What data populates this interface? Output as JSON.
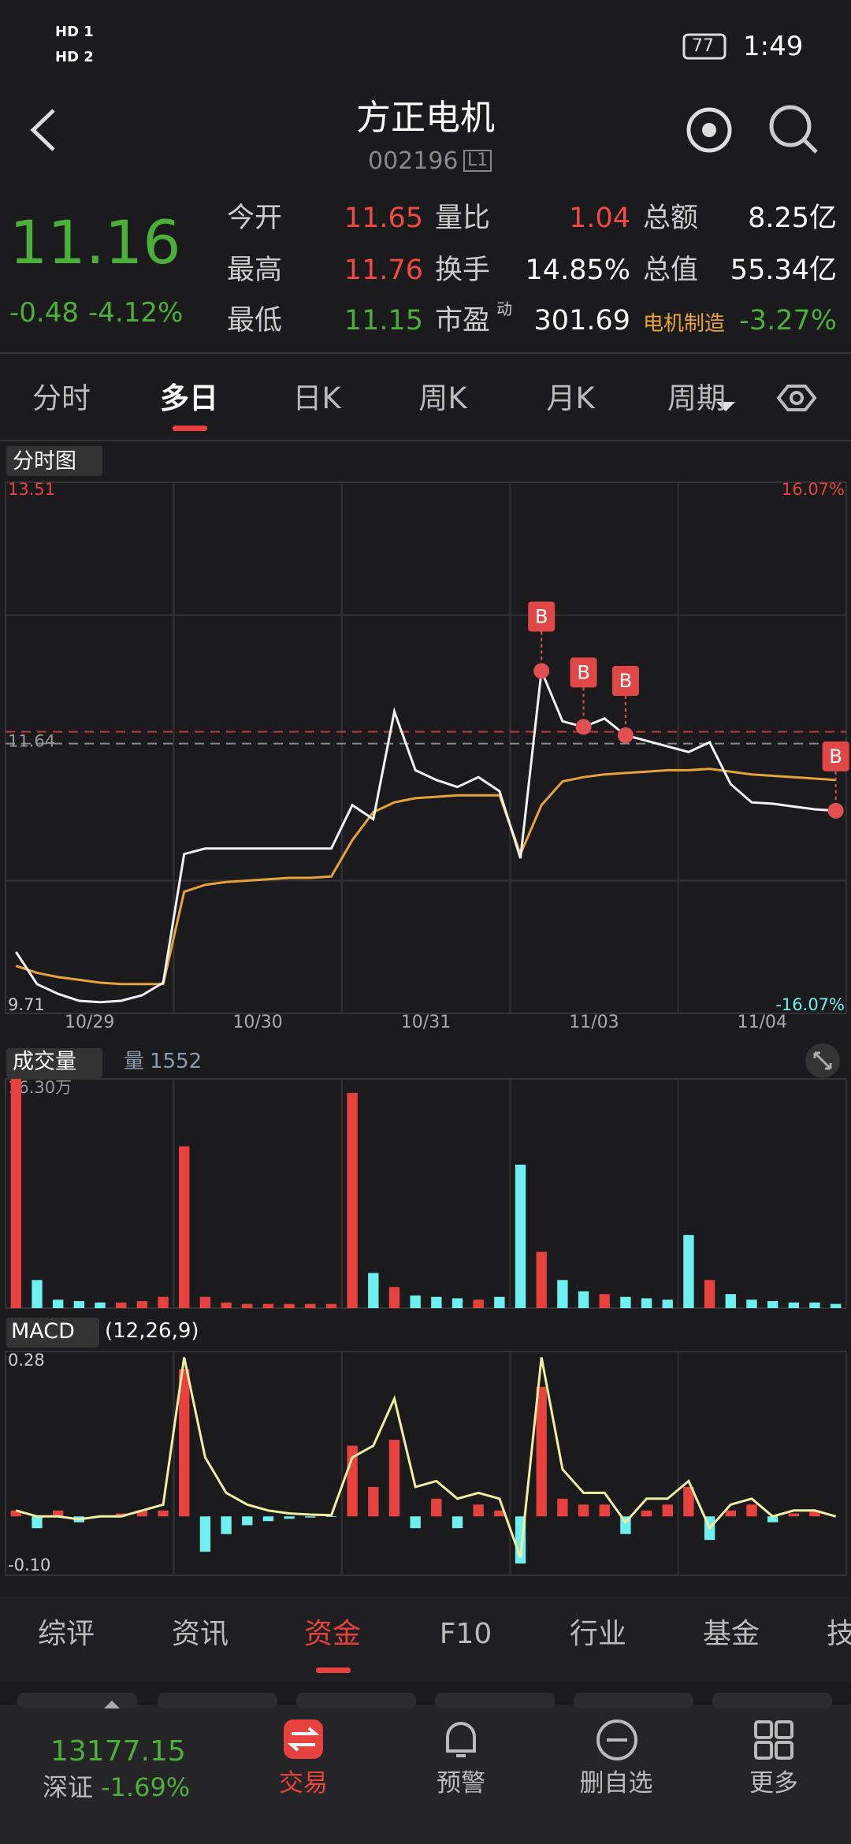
{
  "status_bar": {
    "time": "1:49",
    "battery": "77",
    "sim1": "HD 1",
    "sim2": "HD 2"
  },
  "header": {
    "title": "方正电机",
    "code": "002196",
    "badge": "L1"
  },
  "quote": {
    "price": "11.16",
    "change": "-0.48",
    "change_pct": "-4.12%",
    "stats": [
      [
        {
          "label": "今开",
          "value": "11.65",
          "color": "#f04a44"
        },
        {
          "label": "量比",
          "value": "1.04",
          "color": "#f04a44"
        },
        {
          "label": "总额",
          "value": "8.25亿",
          "color": "#ffffff"
        }
      ],
      [
        {
          "label": "最高",
          "value": "11.76",
          "color": "#f04a44"
        },
        {
          "label": "换手",
          "value": "14.85%",
          "color": "#ffffff"
        },
        {
          "label": "总值",
          "value": "55.34亿",
          "color": "#ffffff"
        }
      ],
      [
        {
          "label": "最低",
          "value": "11.15",
          "color": "#4caf3a"
        },
        {
          "label": "市盈",
          "sup": "动",
          "value": "301.69",
          "color": "#ffffff"
        },
        {
          "label": "电机制造",
          "value": "-3.27%",
          "color": "#4caf3a"
        }
      ]
    ]
  },
  "tabs": [
    "分时",
    "多日",
    "日K",
    "周K",
    "月K",
    "周期"
  ],
  "price_chart": {
    "selector": "分时图",
    "ylim": [
      9.71,
      13.51
    ],
    "yticks": [
      13.51,
      9.71
    ],
    "ref_line": 11.64,
    "pct_top": "16.07%",
    "pct_bottom": "-16.07%",
    "dates": [
      "10/29",
      "10/30",
      "10/31",
      "11/03",
      "11/04"
    ],
    "price": [
      10.15,
      9.92,
      9.85,
      9.8,
      9.79,
      9.8,
      9.84,
      9.93,
      10.85,
      10.89,
      10.89,
      10.89,
      10.89,
      10.89,
      10.89,
      10.89,
      11.2,
      11.1,
      11.87,
      11.45,
      11.38,
      11.33,
      11.4,
      11.3,
      10.82,
      12.16,
      11.8,
      11.76,
      11.82,
      11.7,
      11.66,
      11.62,
      11.58,
      11.65,
      11.35,
      11.22,
      11.21,
      11.19,
      11.17,
      11.16
    ],
    "avg": [
      10.05,
      10,
      9.97,
      9.95,
      9.93,
      9.92,
      9.92,
      9.92,
      10.58,
      10.63,
      10.65,
      10.66,
      10.67,
      10.68,
      10.68,
      10.69,
      10.95,
      11.15,
      11.22,
      11.25,
      11.26,
      11.27,
      11.27,
      11.27,
      10.85,
      11.2,
      11.37,
      11.4,
      11.42,
      11.43,
      11.44,
      11.45,
      11.45,
      11.46,
      11.44,
      11.42,
      11.41,
      11.4,
      11.39,
      11.38
    ],
    "price_color": "#f2f2f2",
    "avg_color": "#e8a23a",
    "markers": [
      "B",
      "B",
      "B",
      "B"
    ]
  },
  "volume_chart": {
    "title": "成交量",
    "volume_label": "量",
    "volume_value": "1552",
    "ylim": [
      0,
      16.3
    ],
    "yticks": [
      {
        "value": 16.3,
        "label": "16.30万"
      }
    ],
    "values": [
      16.3,
      2,
      0.6,
      0.5,
      0.4,
      0.4,
      0.5,
      0.8,
      11.5,
      0.8,
      0.4,
      0.3,
      0.3,
      0.3,
      0.3,
      0.3,
      15.3,
      2.5,
      1.5,
      0.9,
      0.8,
      0.7,
      0.6,
      0.8,
      10.2,
      4,
      2,
      1.2,
      1,
      0.8,
      0.7,
      0.6,
      5.2,
      2,
      1,
      0.6,
      0.5,
      0.4,
      0.4,
      0.3
    ],
    "up_color": "#e8423f",
    "down_color": "#6ff0f0"
  },
  "macd_chart": {
    "title": "MACD",
    "params": "(12,26,9)",
    "ylim": [
      -0.1,
      0.28
    ],
    "yticks": [
      0.28,
      {
        "value": -0.1,
        "label": "-0.10"
      }
    ],
    "hist": [
      0.01,
      -0.02,
      0.01,
      -0.01,
      0,
      0.005,
      0.01,
      0.01,
      0.25,
      -0.06,
      -0.03,
      -0.015,
      -0.008,
      -0.004,
      -0.002,
      -0.001,
      0.12,
      0.05,
      0.13,
      -0.02,
      0.03,
      -0.02,
      0.02,
      0.01,
      -0.08,
      0.22,
      0.03,
      0.02,
      0.02,
      -0.03,
      0.01,
      0.02,
      0.05,
      -0.04,
      0.01,
      0.02,
      -0.01,
      0.005,
      0.01,
      0
    ],
    "dif": [
      0.01,
      0,
      0,
      -0.005,
      0,
      0,
      0.01,
      0.02,
      0.27,
      0.1,
      0.04,
      0.02,
      0.01,
      0.005,
      0.003,
      0.002,
      0.1,
      0.12,
      0.2,
      0.05,
      0.06,
      0.03,
      0.04,
      0.03,
      -0.07,
      0.27,
      0.08,
      0.04,
      0.04,
      -0.01,
      0.03,
      0.03,
      0.06,
      -0.02,
      0.02,
      0.03,
      0,
      0.01,
      0.01,
      0
    ],
    "dif_color": "#f0eea0"
  },
  "detail_tabs": [
    "综评",
    "资讯",
    "资金",
    "F10",
    "行业",
    "基金",
    "技"
  ],
  "index": {
    "value": "13177.15",
    "name": "深证",
    "change": "-1.69%"
  },
  "nav": [
    "交易",
    "预警",
    "删自选",
    "更多"
  ]
}
